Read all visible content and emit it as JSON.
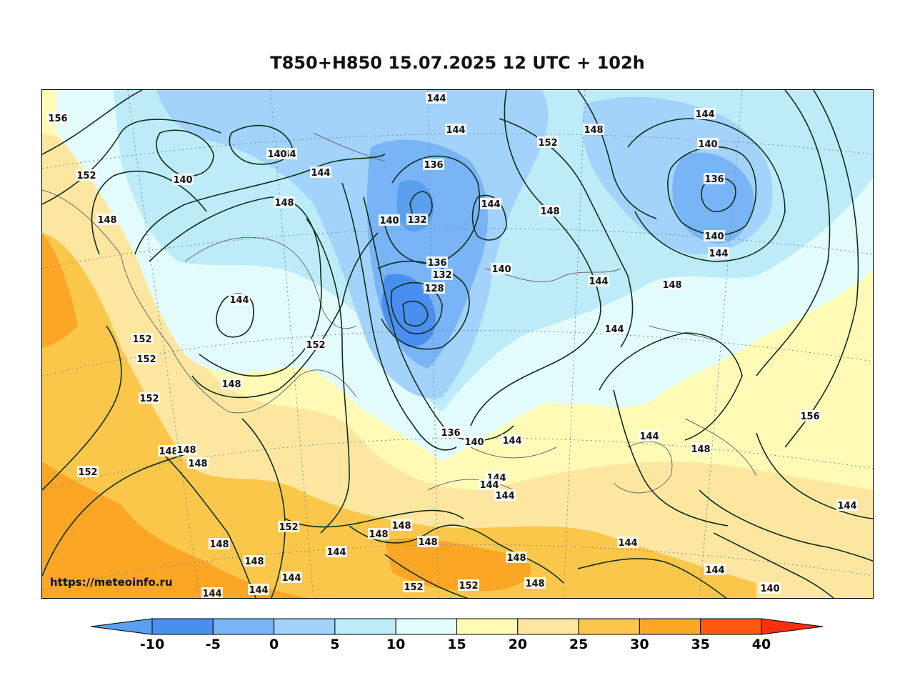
{
  "title": "T850+H850 15.07.2025 12 UTC + 102h",
  "watermark": "https://meteoinfo.ru",
  "legend": {
    "ticks": [
      "-10",
      "-5",
      "0",
      "5",
      "10",
      "15",
      "20",
      "25",
      "30",
      "35",
      "40"
    ],
    "colors": [
      "#5aa0ef",
      "#4a8ff0",
      "#78b4f6",
      "#a3d2fa",
      "#bdebf7",
      "#e2fbfb",
      "#fffbb6",
      "#fde7a0",
      "#fbc74a",
      "#fba624",
      "#ff5a10",
      "#ff3010"
    ]
  },
  "contour_labels": [
    {
      "text": "156"
    },
    {
      "text": "152"
    },
    {
      "text": "148"
    },
    {
      "text": "140"
    },
    {
      "text": "144"
    },
    {
      "text": "144"
    },
    {
      "text": "144"
    },
    {
      "text": "140"
    },
    {
      "text": "144"
    },
    {
      "text": "152"
    },
    {
      "text": "148"
    },
    {
      "text": "144"
    },
    {
      "text": "140"
    },
    {
      "text": "136"
    },
    {
      "text": "140"
    },
    {
      "text": "144"
    },
    {
      "text": "136"
    },
    {
      "text": "140"
    },
    {
      "text": "132"
    },
    {
      "text": "144"
    },
    {
      "text": "148"
    },
    {
      "text": "148"
    },
    {
      "text": "136"
    },
    {
      "text": "132"
    },
    {
      "text": "128"
    },
    {
      "text": "140"
    },
    {
      "text": "144"
    },
    {
      "text": "148"
    },
    {
      "text": "144"
    },
    {
      "text": "144"
    },
    {
      "text": "152"
    },
    {
      "text": "152"
    },
    {
      "text": "152"
    },
    {
      "text": "148"
    },
    {
      "text": "152"
    },
    {
      "text": "136"
    },
    {
      "text": "140"
    },
    {
      "text": "144"
    },
    {
      "text": "156"
    },
    {
      "text": "144"
    },
    {
      "text": "148"
    },
    {
      "text": "148"
    },
    {
      "text": "148"
    },
    {
      "text": "148"
    },
    {
      "text": "152"
    },
    {
      "text": "144"
    },
    {
      "text": "144"
    },
    {
      "text": "144"
    },
    {
      "text": "152"
    },
    {
      "text": "148"
    },
    {
      "text": "148"
    },
    {
      "text": "148"
    },
    {
      "text": "144"
    },
    {
      "text": "148"
    },
    {
      "text": "148"
    },
    {
      "text": "144"
    },
    {
      "text": "148"
    },
    {
      "text": "144"
    },
    {
      "text": "152"
    },
    {
      "text": "152"
    },
    {
      "text": "148"
    },
    {
      "text": "144"
    },
    {
      "text": "140"
    },
    {
      "text": "144"
    },
    {
      "text": "144"
    },
    {
      "text": "144"
    }
  ]
}
